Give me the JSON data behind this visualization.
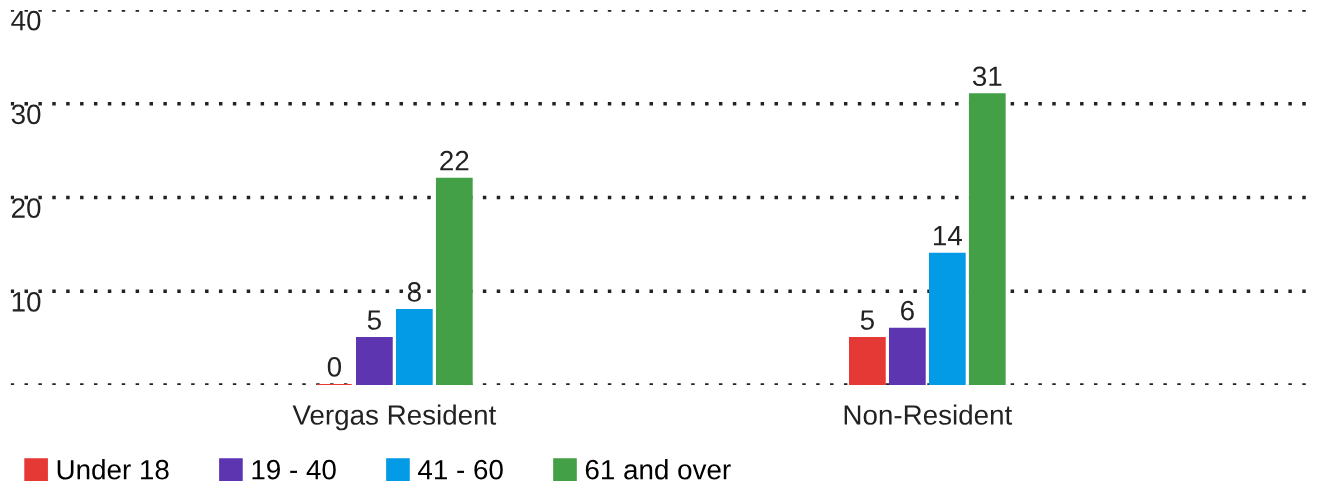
{
  "chart_data": {
    "type": "bar",
    "categories": [
      "Vergas Resident",
      "Non-Resident"
    ],
    "series": [
      {
        "name": "Under 18",
        "color": "#e53935",
        "values": [
          0,
          5
        ]
      },
      {
        "name": "19 - 40",
        "color": "#5e35b1",
        "values": [
          5,
          6
        ]
      },
      {
        "name": "41 - 60",
        "color": "#039be5",
        "values": [
          8,
          14
        ]
      },
      {
        "name": "61 and over",
        "color": "#43a047",
        "values": [
          22,
          31
        ]
      }
    ],
    "ylim": [
      0,
      40
    ],
    "yticks": [
      {
        "value": 0,
        "label": null
      },
      10,
      20,
      30,
      40
    ],
    "grid": "y",
    "legend": "bottom left",
    "data_labels": true
  }
}
